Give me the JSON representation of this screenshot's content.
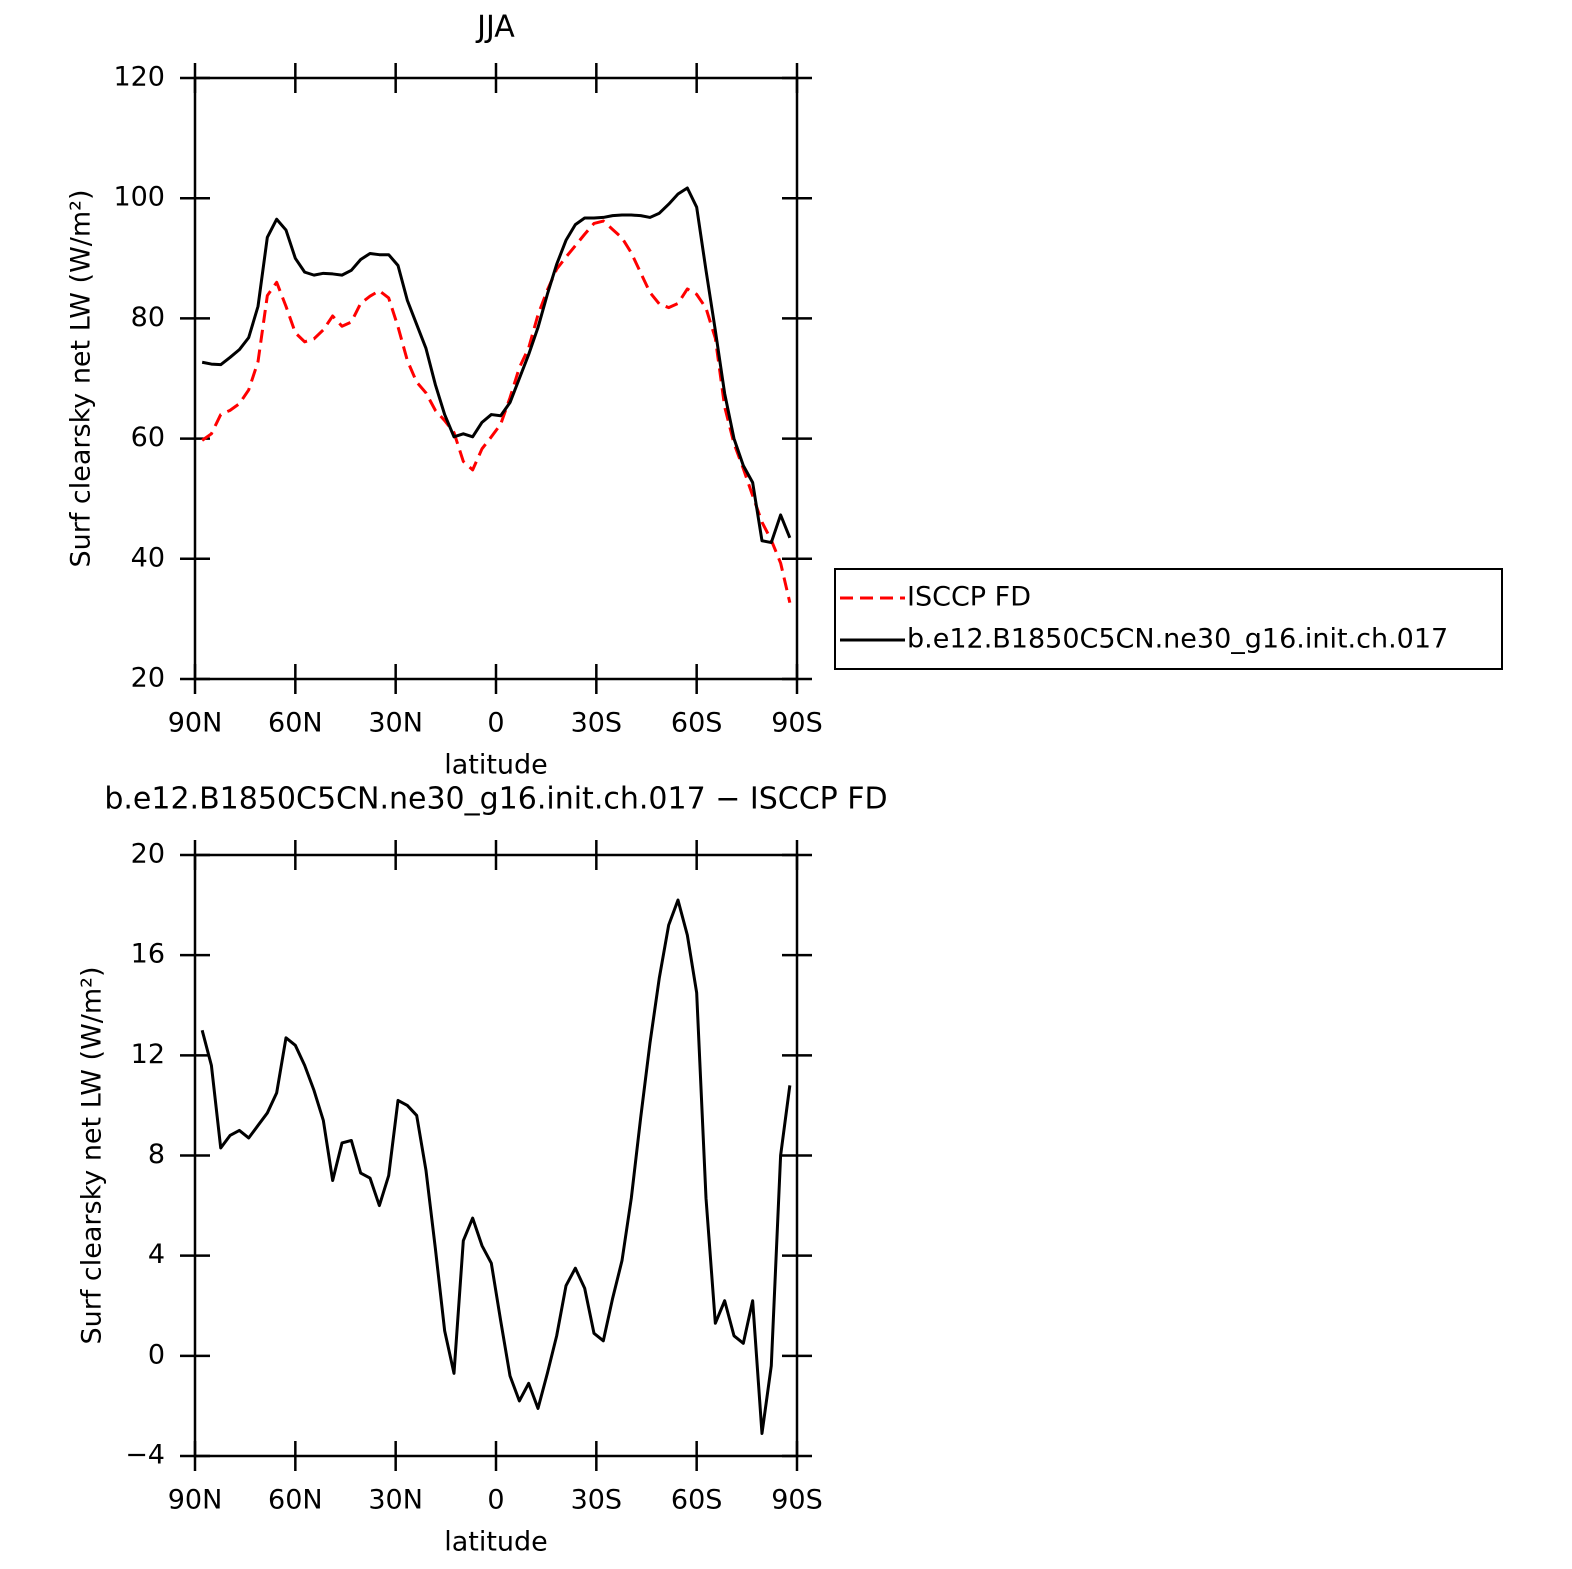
{
  "chart_data": [
    {
      "type": "line",
      "title": "JJA",
      "xlabel": "latitude",
      "ylabel": "Surf clearsky net LW (W/m²)",
      "xlim": [
        90,
        -90
      ],
      "ylim": [
        20,
        120
      ],
      "xticks": [
        {
          "value": 90,
          "label": "90N"
        },
        {
          "value": 60,
          "label": "60N"
        },
        {
          "value": 30,
          "label": "30N"
        },
        0,
        {
          "value": -30,
          "label": "30S"
        },
        {
          "value": -60,
          "label": "60S"
        },
        {
          "value": -90,
          "label": "90S"
        }
      ],
      "yticks": [
        20,
        40,
        60,
        80,
        100,
        120
      ],
      "legend": "right",
      "x": [
        87.86,
        85.1,
        82.31,
        79.53,
        76.74,
        73.95,
        71.16,
        68.37,
        65.58,
        62.79,
        60,
        57.21,
        54.42,
        51.63,
        48.84,
        46.05,
        43.25,
        40.46,
        37.67,
        34.88,
        32.09,
        29.3,
        26.51,
        23.72,
        20.93,
        18.14,
        15.35,
        12.56,
        9.77,
        6.98,
        4.19,
        1.4,
        -1.4,
        -4.19,
        -6.98,
        -9.77,
        -12.56,
        -15.35,
        -18.14,
        -20.93,
        -23.72,
        -26.51,
        -29.3,
        -32.09,
        -34.88,
        -37.67,
        -40.46,
        -43.25,
        -46.05,
        -48.84,
        -51.63,
        -54.42,
        -57.21,
        -60,
        -62.79,
        -65.58,
        -68.37,
        -71.16,
        -73.95,
        -76.74,
        -79.53,
        -82.31,
        -85.1,
        -87.86
      ],
      "series": [
        {
          "name": "ISCCP FD",
          "color": "#ff0000",
          "dash": true,
          "values": [
            59.7,
            60.8,
            64,
            64.7,
            65.8,
            68.1,
            72.8,
            83.8,
            86,
            82,
            77.6,
            76.1,
            76.6,
            78.1,
            80.4,
            78.7,
            79.4,
            82.5,
            83.7,
            84.6,
            83.4,
            78.6,
            73,
            69.4,
            67.6,
            64.7,
            63,
            61,
            56.2,
            54.8,
            58.3,
            60.3,
            62.4,
            66.8,
            71.8,
            75.1,
            80.6,
            84.7,
            88.2,
            90.2,
            92.1,
            94,
            95.8,
            96.2,
            94.8,
            93.4,
            90.9,
            87.6,
            84.3,
            82.4,
            81.8,
            82.5,
            84.9,
            84,
            81.7,
            76.7,
            65.3,
            59.2,
            55,
            50.5,
            46.1,
            43.1,
            39.3,
            32.7
          ]
        },
        {
          "name": "b.e12.B1850C5CN.ne30_g16.init.ch.017",
          "color": "#000000",
          "dash": false,
          "values": [
            72.7,
            72.4,
            72.3,
            73.5,
            74.8,
            76.8,
            82,
            93.5,
            96.5,
            94.7,
            90,
            87.7,
            87.2,
            87.5,
            87.4,
            87.2,
            88,
            89.8,
            90.8,
            90.6,
            90.6,
            88.8,
            83,
            79,
            75,
            69,
            64,
            60.3,
            60.8,
            60.3,
            62.7,
            64,
            63.8,
            66,
            70,
            74,
            78.5,
            84,
            89,
            93,
            95.6,
            96.7,
            96.7,
            96.8,
            97.1,
            97.2,
            97.2,
            97.1,
            96.8,
            97.5,
            99,
            100.7,
            101.7,
            98.5,
            88,
            78,
            67.5,
            60,
            55.5,
            52.7,
            43,
            42.7,
            47.3,
            43.5
          ]
        }
      ]
    },
    {
      "type": "line",
      "title": "b.e12.B1850C5CN.ne30_g16.init.ch.017 − ISCCP FD",
      "xlabel": "latitude",
      "ylabel": "Surf clearsky net LW (W/m²)",
      "xlim": [
        90,
        -90
      ],
      "ylim": [
        -4,
        20
      ],
      "xticks": [
        {
          "value": 90,
          "label": "90N"
        },
        {
          "value": 60,
          "label": "60N"
        },
        {
          "value": 30,
          "label": "30N"
        },
        0,
        {
          "value": -30,
          "label": "30S"
        },
        {
          "value": -60,
          "label": "60S"
        },
        {
          "value": -90,
          "label": "90S"
        }
      ],
      "yticks": [
        {
          "value": -4,
          "label": "−4"
        },
        0,
        4,
        8,
        12,
        16,
        20
      ],
      "x": [
        87.86,
        85.1,
        82.31,
        79.53,
        76.74,
        73.95,
        71.16,
        68.37,
        65.58,
        62.79,
        60,
        57.21,
        54.42,
        51.63,
        48.84,
        46.05,
        43.25,
        40.46,
        37.67,
        34.88,
        32.09,
        29.3,
        26.51,
        23.72,
        20.93,
        18.14,
        15.35,
        12.56,
        9.77,
        6.98,
        4.19,
        1.4,
        -1.4,
        -4.19,
        -6.98,
        -9.77,
        -12.56,
        -15.35,
        -18.14,
        -20.93,
        -23.72,
        -26.51,
        -29.3,
        -32.09,
        -34.88,
        -37.67,
        -40.46,
        -43.25,
        -46.05,
        -48.84,
        -51.63,
        -54.42,
        -57.21,
        -60,
        -62.79,
        -65.58,
        -68.37,
        -71.16,
        -73.95,
        -76.74,
        -79.53,
        -82.31,
        -85.1,
        -87.86
      ],
      "series": [
        {
          "color": "#000000",
          "dash": false,
          "values": [
            13,
            11.6,
            8.3,
            8.8,
            9,
            8.7,
            9.2,
            9.7,
            10.5,
            12.7,
            12.4,
            11.6,
            10.6,
            9.4,
            7,
            8.5,
            8.6,
            7.3,
            7.1,
            6,
            7.2,
            10.2,
            10,
            9.6,
            7.4,
            4.3,
            1,
            -0.7,
            4.6,
            5.5,
            4.4,
            3.7,
            1.4,
            -0.8,
            -1.8,
            -1.1,
            -2.1,
            -0.7,
            0.8,
            2.8,
            3.5,
            2.7,
            0.9,
            0.6,
            2.3,
            3.8,
            6.3,
            9.5,
            12.5,
            15.1,
            17.2,
            18.2,
            16.8,
            14.5,
            6.3,
            1.3,
            2.2,
            0.8,
            0.5,
            2.2,
            -3.1,
            -0.4,
            8,
            10.8
          ]
        }
      ]
    }
  ]
}
